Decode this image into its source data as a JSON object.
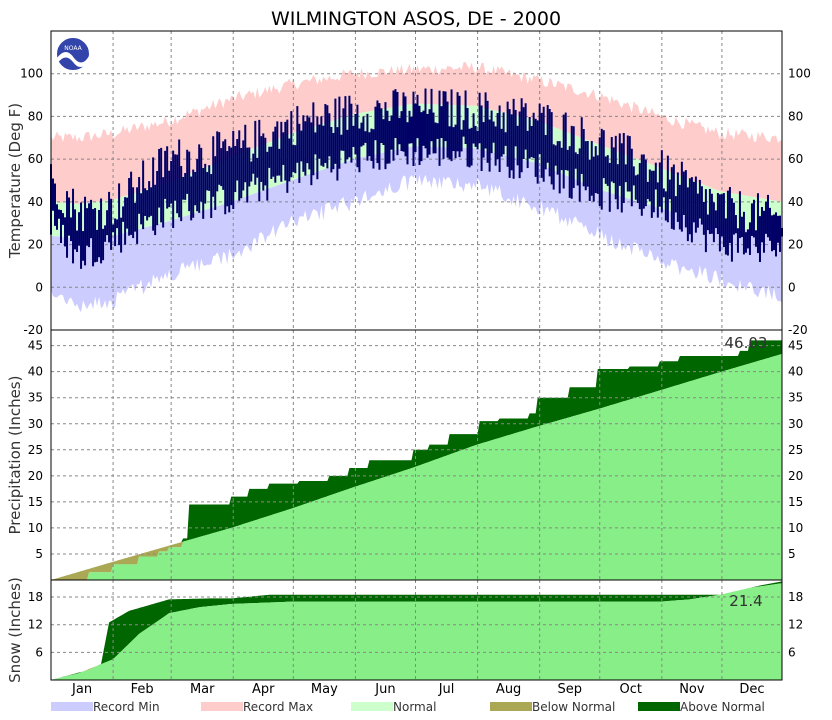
{
  "chart_data": {
    "type": "area",
    "title": "WILMINGTON   ASOS, DE - 2000",
    "months": [
      "Jan",
      "Feb",
      "Mar",
      "Apr",
      "May",
      "Jun",
      "Jul",
      "Aug",
      "Sep",
      "Oct",
      "Nov",
      "Dec"
    ],
    "logo_text": "NOAA",
    "legend": [
      "Record Min",
      "Record Max",
      "Normal",
      "Below Normal",
      "Above Normal"
    ],
    "colors": {
      "record_min": "#ccccff",
      "record_max": "#ffcccc",
      "normal_band": "#ccffcc",
      "observed": "#000066",
      "precip_normal": "#88ee88",
      "above_normal": "#006600",
      "below_normal": "#aaa855",
      "grid": "#888888"
    },
    "panels": {
      "temperature": {
        "ylabel": "Temperature (Deg F)",
        "ylim": [
          -20,
          120
        ],
        "ticks": [
          -20,
          0,
          20,
          40,
          60,
          80,
          100
        ],
        "record_max": {
          "x": [
            1,
            15,
            32,
            60,
            91,
            121,
            152,
            182,
            213,
            244,
            274,
            305,
            335,
            366
          ],
          "values": [
            70,
            70,
            72,
            78,
            88,
            95,
            100,
            102,
            103,
            97,
            90,
            80,
            72,
            70
          ]
        },
        "normal_high": {
          "x": [
            1,
            15,
            32,
            60,
            91,
            121,
            152,
            182,
            213,
            244,
            274,
            305,
            335,
            366
          ],
          "values": [
            40,
            39,
            41,
            49,
            61,
            72,
            81,
            86,
            85,
            78,
            67,
            56,
            45,
            40
          ]
        },
        "normal_low": {
          "x": [
            1,
            15,
            32,
            60,
            91,
            121,
            152,
            182,
            213,
            244,
            274,
            305,
            335,
            366
          ],
          "values": [
            24,
            23,
            24,
            31,
            40,
            50,
            60,
            66,
            65,
            58,
            46,
            37,
            29,
            24
          ]
        },
        "record_min": {
          "x": [
            1,
            15,
            32,
            60,
            91,
            121,
            152,
            182,
            213,
            244,
            274,
            305,
            335,
            366
          ],
          "values": [
            -2,
            -8,
            -6,
            6,
            15,
            30,
            40,
            50,
            48,
            38,
            25,
            12,
            4,
            -4
          ]
        },
        "observed_high": {
          "x": [
            1,
            15,
            32,
            60,
            91,
            121,
            152,
            182,
            213,
            244,
            274,
            305,
            335,
            366
          ],
          "values": [
            50,
            35,
            38,
            60,
            64,
            76,
            82,
            84,
            83,
            79,
            68,
            55,
            38,
            32
          ]
        },
        "observed_low": {
          "x": [
            1,
            15,
            32,
            60,
            91,
            121,
            152,
            182,
            213,
            244,
            274,
            305,
            335,
            366
          ],
          "values": [
            30,
            14,
            22,
            35,
            42,
            52,
            60,
            64,
            63,
            56,
            44,
            38,
            20,
            18
          ]
        }
      },
      "precipitation": {
        "ylabel": "Precipitation (Inches)",
        "ylim": [
          0,
          48
        ],
        "ticks": [
          5,
          10,
          15,
          20,
          25,
          30,
          35,
          40,
          45
        ],
        "total_label": "46.03",
        "normal": {
          "x": [
            1,
            32,
            60,
            91,
            121,
            152,
            182,
            213,
            244,
            274,
            305,
            335,
            366
          ],
          "values": [
            0,
            3.5,
            6.6,
            10.0,
            13.7,
            17.8,
            21.6,
            25.9,
            29.5,
            32.8,
            36.4,
            39.9,
            43.4
          ]
        },
        "observed": {
          "x": [
            1,
            20,
            32,
            45,
            55,
            60,
            67,
            70,
            91,
            100,
            110,
            125,
            140,
            150,
            160,
            182,
            190,
            200,
            215,
            225,
            240,
            244,
            260,
            274,
            290,
            305,
            315,
            330,
            345,
            350,
            366
          ],
          "values": [
            0,
            1.5,
            3.0,
            4.5,
            5.5,
            6.3,
            8.0,
            14.5,
            16.0,
            17.5,
            18.5,
            19.0,
            20.0,
            21.5,
            23.0,
            25.0,
            26.0,
            28.0,
            30.5,
            31.0,
            32.0,
            35.0,
            37.0,
            40.5,
            41.0,
            42.0,
            43.0,
            43.0,
            44.0,
            46.0,
            46.03
          ]
        }
      },
      "snow": {
        "ylabel": "Snow (Inches)",
        "ylim": [
          0,
          21.7
        ],
        "ticks": [
          6,
          12,
          18
        ],
        "total_label": "21.4",
        "normal": {
          "x": [
            1,
            15,
            32,
            45,
            60,
            75,
            91,
            121,
            305,
            320,
            335,
            350,
            366
          ],
          "values": [
            0,
            1.5,
            4.5,
            10.0,
            14.5,
            15.8,
            16.5,
            17.0,
            17.0,
            17.5,
            18.5,
            20.0,
            21.0
          ]
        },
        "observed": {
          "x": [
            1,
            20,
            26,
            30,
            40,
            60,
            80,
            91,
            110,
            335,
            345,
            355,
            366
          ],
          "values": [
            0,
            2.2,
            3.5,
            12.5,
            15.0,
            17.5,
            17.7,
            17.7,
            18.5,
            18.5,
            19.5,
            20.5,
            21.4
          ]
        }
      }
    }
  }
}
